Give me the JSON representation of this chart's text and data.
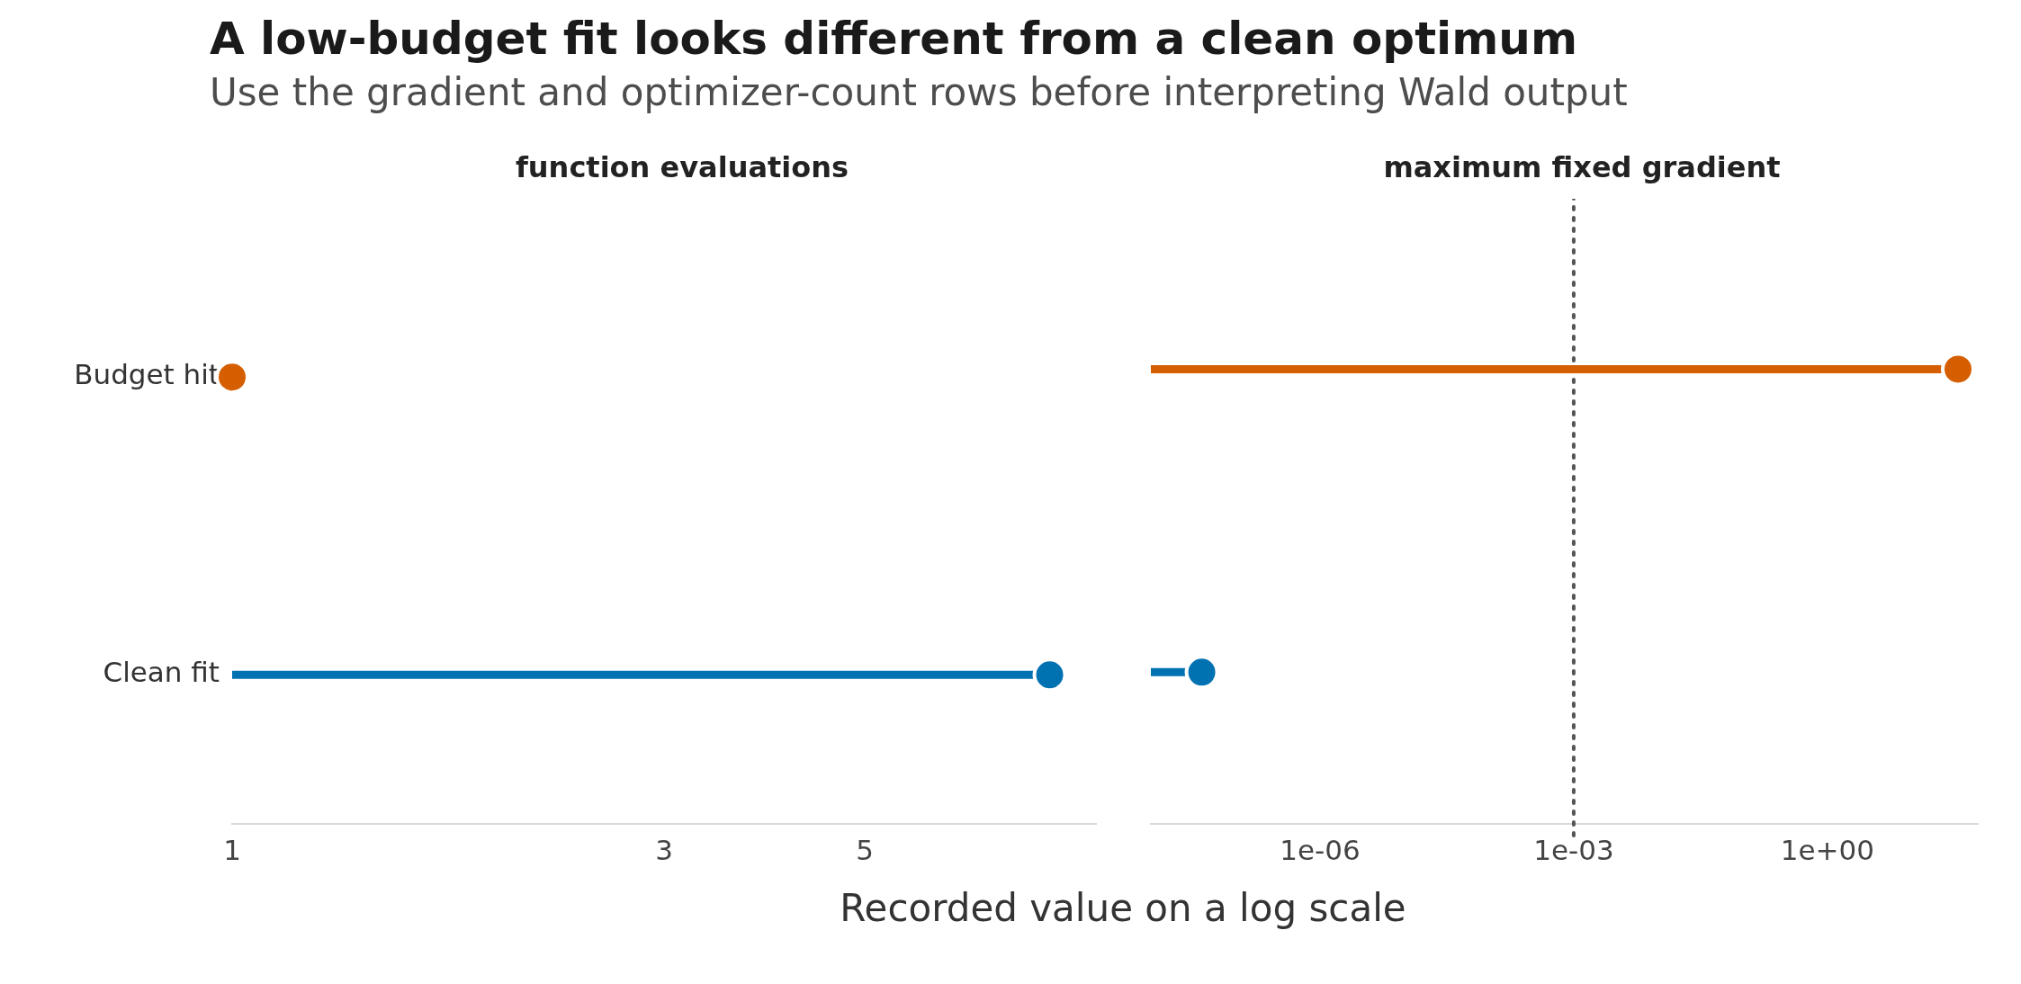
{
  "chart_data": [
    {
      "type": "lollipop",
      "orientation": "horizontal",
      "title": "A low-budget fit looks different from a clean optimum",
      "subtitle": "Use the gradient and optimizer-count rows before interpreting Wald output",
      "xlabel": "Recorded value on a log scale",
      "annotations": [
        "function evaluations"
      ],
      "categories": [
        "Budget hit",
        "Clean fit"
      ],
      "values": [
        1,
        8
      ],
      "colors": [
        "#d55e00",
        "#0072b2"
      ],
      "log": "x",
      "xlim": [
        1,
        9
      ],
      "xticks": [
        1,
        3,
        5
      ],
      "grid": false,
      "legend": false,
      "marker": "circle"
    },
    {
      "type": "lollipop",
      "orientation": "horizontal",
      "annotations": [
        "maximum fixed gradient"
      ],
      "values": [
        35,
        4e-08
      ],
      "colors": [
        "#d55e00",
        "#0072b2"
      ],
      "log": "x",
      "xlim": [
        1e-08,
        60
      ],
      "xticks": [
        {
          "value": 1e-06,
          "label": "1e-06"
        },
        {
          "value": 0.001,
          "label": "1e-03"
        },
        {
          "value": 1,
          "label": "1e+00"
        }
      ],
      "tick_labels": "x",
      "grid": false,
      "legend": false,
      "marker": "circle",
      "ref_lines": [
        {
          "axis": "x",
          "value": 0.001,
          "color": "#555555",
          "line_style": "dotted"
        }
      ]
    }
  ]
}
